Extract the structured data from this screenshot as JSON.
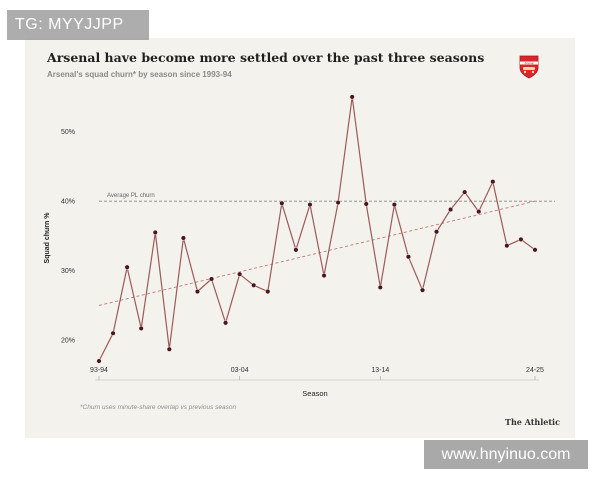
{
  "watermarks": {
    "top": "TG: MYYJJPP",
    "bottom": "www.hnyinuo.com"
  },
  "header": {
    "title": "Arsenal have become more settled over the past three seasons",
    "subtitle": "Arsenal's squad churn* by season since 1993-94",
    "crest_label": "Arsenal"
  },
  "footer": {
    "footnote": "*Churn uses minute-share overlap vs previous season",
    "source": "The Athletic"
  },
  "colors": {
    "line": "#9c5a5a",
    "point": "#4a1420",
    "trend": "#c07a7a",
    "reference": "#888888",
    "crest": "#d8262e"
  },
  "chart_data": {
    "type": "line",
    "title": "Arsenal have become more settled over the past three seasons",
    "xlabel": "Season",
    "ylabel": "Squad churn %",
    "ylim": [
      16,
      57
    ],
    "y_ticks": [
      20,
      30,
      40,
      50
    ],
    "y_tick_labels": [
      "20%",
      "30%",
      "40%",
      "50%"
    ],
    "x_tick_labels": [
      "93-94",
      "03-04",
      "13-14",
      "24-25"
    ],
    "x_tick_index": [
      0,
      10,
      20,
      31
    ],
    "grid": false,
    "series": [
      {
        "name": "Arsenal squad churn",
        "values": [
          17,
          21,
          30.5,
          21.7,
          35.5,
          18.7,
          34.7,
          27,
          28.8,
          22.5,
          29.5,
          27.9,
          27,
          39.7,
          33,
          39.5,
          29.3,
          39.8,
          55,
          39.6,
          27.6,
          39.5,
          32,
          27.2,
          35.6,
          38.8,
          41.3,
          38.5,
          42.8,
          33.6,
          34.5,
          33
        ]
      }
    ],
    "reference_line": {
      "label": "Average PL churn",
      "value": 40
    },
    "trend_line": {
      "start": 25,
      "end": 40
    }
  }
}
